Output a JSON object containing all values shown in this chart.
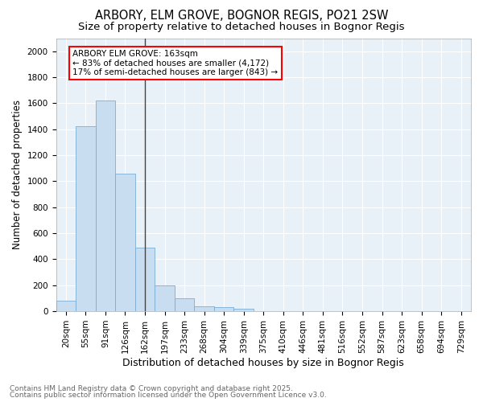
{
  "title1": "ARBORY, ELM GROVE, BOGNOR REGIS, PO21 2SW",
  "title2": "Size of property relative to detached houses in Bognor Regis",
  "xlabel": "Distribution of detached houses by size in Bognor Regis",
  "ylabel": "Number of detached properties",
  "bar_labels": [
    "20sqm",
    "55sqm",
    "91sqm",
    "126sqm",
    "162sqm",
    "197sqm",
    "233sqm",
    "268sqm",
    "304sqm",
    "339sqm",
    "375sqm",
    "410sqm",
    "446sqm",
    "481sqm",
    "516sqm",
    "552sqm",
    "587sqm",
    "623sqm",
    "658sqm",
    "694sqm",
    "729sqm"
  ],
  "bar_values": [
    80,
    1420,
    1620,
    1060,
    490,
    200,
    100,
    35,
    30,
    20,
    0,
    0,
    0,
    0,
    0,
    0,
    0,
    0,
    0,
    0,
    0
  ],
  "bar_color": "#c9ddf0",
  "bar_edge_color": "#7aadd4",
  "vline_index": 4,
  "vline_color": "#444444",
  "annotation_line1": "ARBORY ELM GROVE: 163sqm",
  "annotation_line2": "← 83% of detached houses are smaller (4,172)",
  "annotation_line3": "17% of semi-detached houses are larger (843) →",
  "annotation_box_facecolor": "white",
  "annotation_box_edgecolor": "red",
  "ylim": [
    0,
    2100
  ],
  "yticks": [
    0,
    200,
    400,
    600,
    800,
    1000,
    1200,
    1400,
    1600,
    1800,
    2000
  ],
  "bg_color": "#e8f0f8",
  "grid_color": "white",
  "footer1": "Contains HM Land Registry data © Crown copyright and database right 2025.",
  "footer2": "Contains public sector information licensed under the Open Government Licence v3.0.",
  "title1_fontsize": 10.5,
  "title2_fontsize": 9.5,
  "xlabel_fontsize": 9,
  "ylabel_fontsize": 8.5,
  "tick_fontsize": 7.5,
  "footer_fontsize": 6.5
}
